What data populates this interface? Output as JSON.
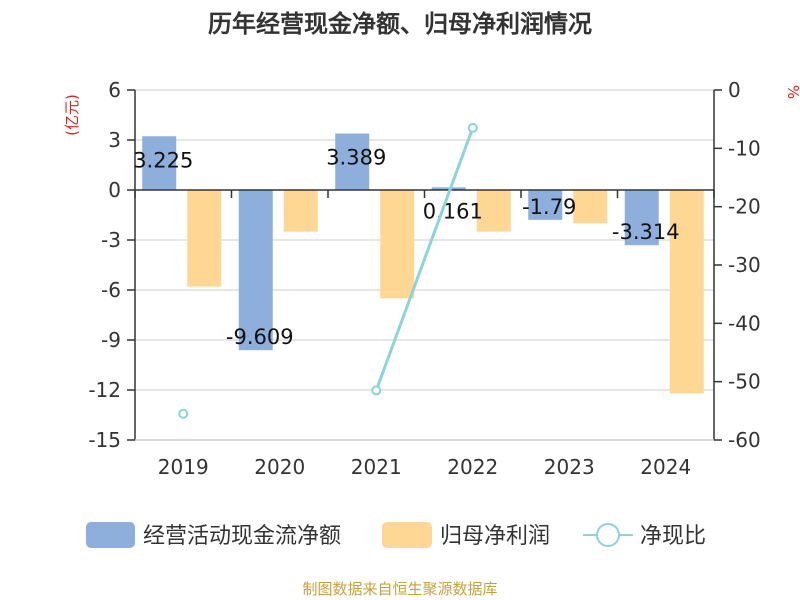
{
  "chart_data": {
    "type": "bar",
    "title": "历年经营现金净额、归母净利润情况",
    "categories": [
      "2019",
      "2020",
      "2021",
      "2022",
      "2023",
      "2024"
    ],
    "series": [
      {
        "name": "经营活动现金流净额",
        "axis": "left",
        "values": [
          3.225,
          -9.609,
          3.389,
          0.161,
          -1.79,
          -3.314
        ],
        "labels": [
          "3.225",
          "-9.609",
          "3.389",
          "0.161",
          "-1.79",
          "-3.314"
        ],
        "color": "#8eaedc"
      },
      {
        "name": "归母净利润",
        "axis": "left",
        "values": [
          -5.8,
          -2.5,
          -6.5,
          -2.5,
          -2.0,
          -12.2
        ],
        "color": "#ffd794"
      },
      {
        "name": "净现比",
        "axis": "right",
        "type": "line",
        "values": [
          -55.5,
          null,
          -51.5,
          -6.5,
          null,
          null
        ],
        "color": "#8dd3d9"
      }
    ],
    "y_left": {
      "label": "(亿元)",
      "min": -15,
      "max": 6,
      "ticks": [
        "6",
        "3",
        "0",
        "-3",
        "-6",
        "-9",
        "-12",
        "-15"
      ],
      "tick_values": [
        6,
        3,
        0,
        -3,
        -6,
        -9,
        -12,
        -15
      ]
    },
    "y_right": {
      "label": "%",
      "min": -60,
      "max": 0,
      "ticks": [
        "0",
        "-10",
        "-20",
        "-30",
        "-40",
        "-50",
        "-60"
      ],
      "tick_values": [
        0,
        -10,
        -20,
        -30,
        -40,
        -50,
        -60
      ]
    },
    "grid": true,
    "legend_position": "bottom"
  },
  "source_text": "制图数据来自恒生聚源数据库"
}
